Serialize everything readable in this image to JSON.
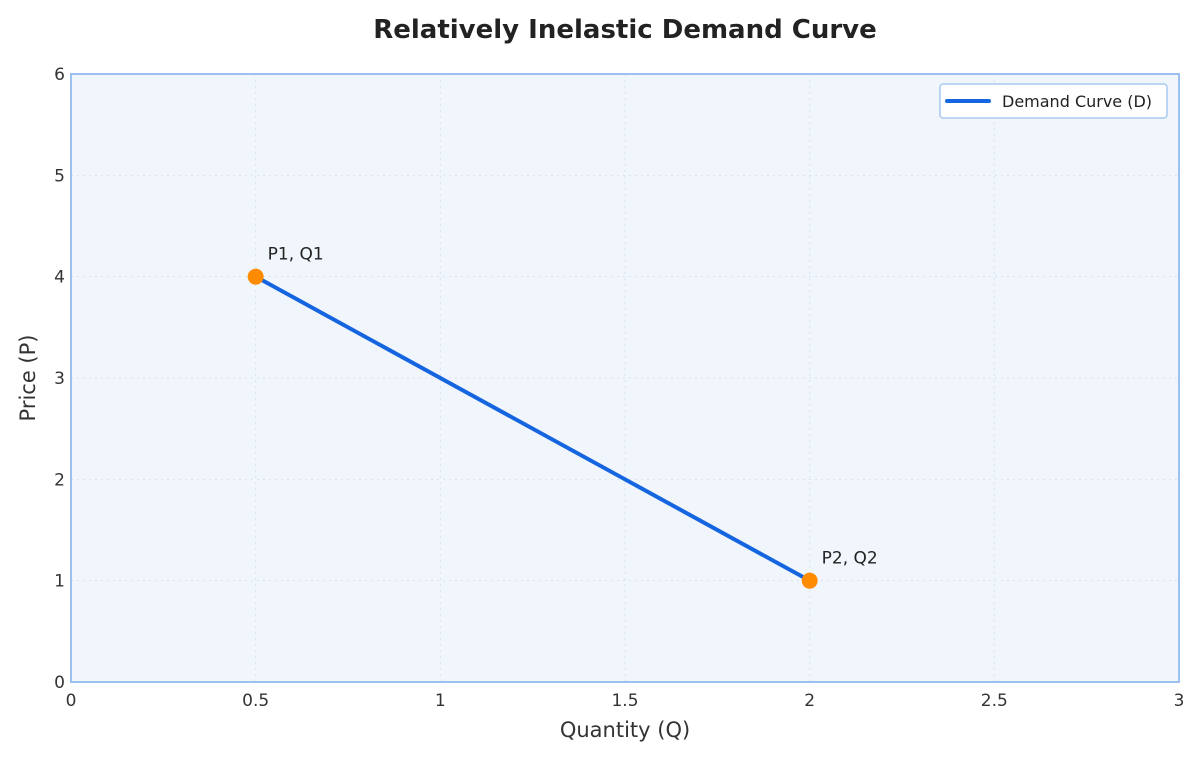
{
  "colors": {
    "plot_background": "#f1f6fc",
    "plot_border": "#9cc0f0",
    "demand_line": "#1565e0",
    "point_marker": "#ff8c00",
    "legend_border": "#a9c9f2"
  },
  "chart_data": {
    "type": "line",
    "title": "Relatively Inelastic Demand Curve",
    "xlabel": "Quantity (Q)",
    "ylabel": "Price (P)",
    "xlim": [
      0,
      3
    ],
    "ylim": [
      0,
      6
    ],
    "xticks": [
      0,
      0.5,
      1,
      1.5,
      2,
      2.5,
      3
    ],
    "yticks": [
      0,
      1,
      2,
      3,
      4,
      5,
      6
    ],
    "xtick_labels": [
      "0",
      "0.5",
      "1",
      "1.5",
      "2",
      "2.5",
      "3"
    ],
    "ytick_labels": [
      "0",
      "1",
      "2",
      "3",
      "4",
      "5",
      "6"
    ],
    "grid": true,
    "legend": "top-right",
    "series": [
      {
        "name": "Demand Curve (D)",
        "x": [
          0.5,
          2
        ],
        "y": [
          4,
          1
        ]
      }
    ],
    "points": [
      {
        "x": 0.5,
        "y": 4,
        "label": "P1, Q1"
      },
      {
        "x": 2,
        "y": 1,
        "label": "P2, Q2"
      }
    ]
  }
}
